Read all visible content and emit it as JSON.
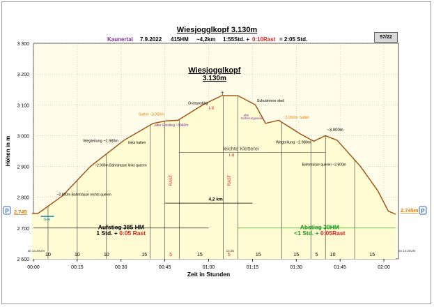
{
  "header": {
    "title": "Wiesjogglkopf 3.130m",
    "region": "Kaunertal",
    "date": "7.9.2022",
    "elevation_gain": "415HM",
    "distance": "~4,2km",
    "time_part1": "1:55Std. +",
    "time_rest": "0:10Rast",
    "time_total": "= 2:05  Std.",
    "page_badge": "57/22"
  },
  "colors": {
    "plot_bg": "#fffdea",
    "profile": "#8b4513",
    "dots": "#c8762a",
    "red": "#e02020",
    "green": "#1a9a1a",
    "purple": "#7b2f9b",
    "orange": "#e07b00",
    "blue_badge": "#2a63c5"
  },
  "chart_data": {
    "type": "area",
    "title": "Wiesjogglkopf",
    "subtitle": "3.130m",
    "xlabel": "Zeit in Stunden",
    "ylabel": "Höhen in m",
    "xlim": [
      0,
      125
    ],
    "ylim": [
      2600,
      3300
    ],
    "x_unit": "minutes",
    "x_ticks": [
      {
        "x": 0,
        "label": "00:00"
      },
      {
        "x": 15,
        "label": "00:15"
      },
      {
        "x": 30,
        "label": "00:30"
      },
      {
        "x": 45,
        "label": "00:45"
      },
      {
        "x": 60,
        "label": "01:00"
      },
      {
        "x": 75,
        "label": "01:15"
      },
      {
        "x": 90,
        "label": "01:30"
      },
      {
        "x": 105,
        "label": "01:45"
      },
      {
        "x": 120,
        "label": "02:00"
      }
    ],
    "y_ticks": [
      {
        "y": 3300,
        "label": "3 300"
      },
      {
        "y": 3200,
        "label": "3 200"
      },
      {
        "y": 3100,
        "label": "3 100"
      },
      {
        "y": 3000,
        "label": "3 000"
      },
      {
        "y": 2900,
        "label": "2 900"
      },
      {
        "y": 2800,
        "label": "2 800"
      },
      {
        "y": 2700,
        "label": "2 700"
      },
      {
        "y": 2600,
        "label": "2 600"
      }
    ],
    "profile": [
      {
        "x": -0.5,
        "y": 2747
      },
      {
        "x": 1.5,
        "y": 2747
      },
      {
        "x": 10,
        "y": 2805
      },
      {
        "x": 19.5,
        "y": 2900
      },
      {
        "x": 31,
        "y": 2985
      },
      {
        "x": 41,
        "y": 3040
      },
      {
        "x": 45.5,
        "y": 3048
      },
      {
        "x": 49.5,
        "y": 3050
      },
      {
        "x": 58,
        "y": 3100
      },
      {
        "x": 64.5,
        "y": 3130
      },
      {
        "x": 70,
        "y": 3130
      },
      {
        "x": 76,
        "y": 3100
      },
      {
        "x": 79.5,
        "y": 3040
      },
      {
        "x": 84,
        "y": 3050
      },
      {
        "x": 91.5,
        "y": 3005
      },
      {
        "x": 96,
        "y": 2982
      },
      {
        "x": 100,
        "y": 3000
      },
      {
        "x": 104,
        "y": 2985
      },
      {
        "x": 112,
        "y": 2900
      },
      {
        "x": 118,
        "y": 2820
      },
      {
        "x": 121.5,
        "y": 2755
      },
      {
        "x": 124,
        "y": 2745
      }
    ],
    "segment_lines_x": [
      5,
      15,
      25,
      40,
      45,
      50,
      65,
      70,
      85,
      95,
      100,
      110
    ],
    "segment_minutes": [
      {
        "x": 5,
        "label": "10"
      },
      {
        "x": 15,
        "label": "10"
      },
      {
        "x": 25,
        "label": "10"
      },
      {
        "x": 38,
        "label": "15"
      },
      {
        "x": 47,
        "label": "5",
        "red": true
      },
      {
        "x": 57,
        "label": "15"
      },
      {
        "x": 67,
        "label": "5",
        "red": true
      },
      {
        "x": 77,
        "label": "15"
      },
      {
        "x": 90,
        "label": "15"
      },
      {
        "x": 97,
        "label": "5"
      },
      {
        "x": 102.5,
        "label": "10"
      },
      {
        "x": 116,
        "label": "15"
      }
    ],
    "annotations": [
      {
        "x": 8,
        "y": 2805,
        "text": "~2.800m Bahntrasse rechts queren",
        "color": "#000000",
        "size": 5
      },
      {
        "x": 21,
        "y": 2900,
        "text": "~2.900m Bahntrasse links queren",
        "color": "#000000",
        "size": 5
      },
      {
        "x": 17,
        "y": 2980,
        "text": "Wegteilung ~2.980m",
        "color": "#000000",
        "size": 5.5
      },
      {
        "x": 32.5,
        "y": 2974,
        "text": "links halten",
        "color": "#000000",
        "size": 5
      },
      {
        "x": 36,
        "y": 3065,
        "text": "Sattel ~3.050m",
        "color": "#e07b00",
        "size": 5.5
      },
      {
        "x": 41.5,
        "y": 3030,
        "text": "alter Einstieg ~3040m",
        "color": "#7b2f9b",
        "size": 5
      },
      {
        "x": 53,
        "y": 3102,
        "text": "Gratanstieg",
        "color": "#000000",
        "size": 5.5
      },
      {
        "x": 76.5,
        "y": 3110,
        "text": "Schuttrinne steil",
        "color": "#000000",
        "size": 5.5
      },
      {
        "x": 72,
        "y": 3063,
        "text": "alte",
        "color": "#7b2f9b",
        "size": 4.5
      },
      {
        "x": 71,
        "y": 3053,
        "text": "Sicherungsseile",
        "color": "#7b2f9b",
        "size": 4.5
      },
      {
        "x": 85.5,
        "y": 3055,
        "text": "~3.050m Sattel",
        "color": "#e07b00",
        "size": 5.5
      },
      {
        "x": 100.5,
        "y": 3014,
        "text": "~3.000m",
        "color": "#000000",
        "size": 6
      },
      {
        "x": 83,
        "y": 2975,
        "text": "Wegteilung ~2.980m",
        "color": "#000000",
        "size": 5.5
      },
      {
        "x": 92,
        "y": 2902,
        "text": "Bahntrasse queren ~2.900m",
        "color": "#000000",
        "size": 5
      },
      {
        "x": 60,
        "y": 3085,
        "text": "I-II",
        "color": "#e02020",
        "size": 6.5
      },
      {
        "x": 65,
        "y": 2952,
        "text": "leichte Kletterei",
        "color": "#444444",
        "size": 7.5
      },
      {
        "x": 67,
        "y": 2932,
        "text": "I-II",
        "color": "#e02020",
        "size": 6.5
      },
      {
        "x": 47.5,
        "y": 2855,
        "text": "RAST",
        "color": "#e02020",
        "size": 6,
        "vertical": true
      },
      {
        "x": 67.5,
        "y": 2855,
        "text": "RAST",
        "color": "#e02020",
        "size": 6,
        "vertical": true
      },
      {
        "x": 60,
        "y": 2789,
        "text": "4,2 km",
        "color": "#000000",
        "size": 6.5,
        "bold": true
      },
      {
        "x": 3.5,
        "y": 2725,
        "text": "See",
        "color": "#1a8aa8",
        "size": 5.5
      },
      {
        "x": -2,
        "y": 2623,
        "text": "ab 12:20Uhr",
        "color": "#444444",
        "size": 4.5
      },
      {
        "x": 125,
        "y": 2623,
        "text": "an 14:25Uhr",
        "color": "#444444",
        "size": 4.5
      },
      {
        "x": 66,
        "y": 2623,
        "text": "13:26",
        "color": "#444444",
        "size": 4.5
      }
    ],
    "side_labels": {
      "left": "2.745",
      "right": "2.745m",
      "parking": "P"
    },
    "summaries": [
      {
        "x": 30,
        "line1": "Aufstieg 385 HM",
        "line2a": "1 Std. +",
        "line2b": "0:05 Rast",
        "color": "#000000"
      },
      {
        "x": 98,
        "line1": "Abstieg 30HM",
        "line2a": "<1 Std. +",
        "line2b": "0:05Rast",
        "color": "#1a9a1a"
      }
    ]
  }
}
